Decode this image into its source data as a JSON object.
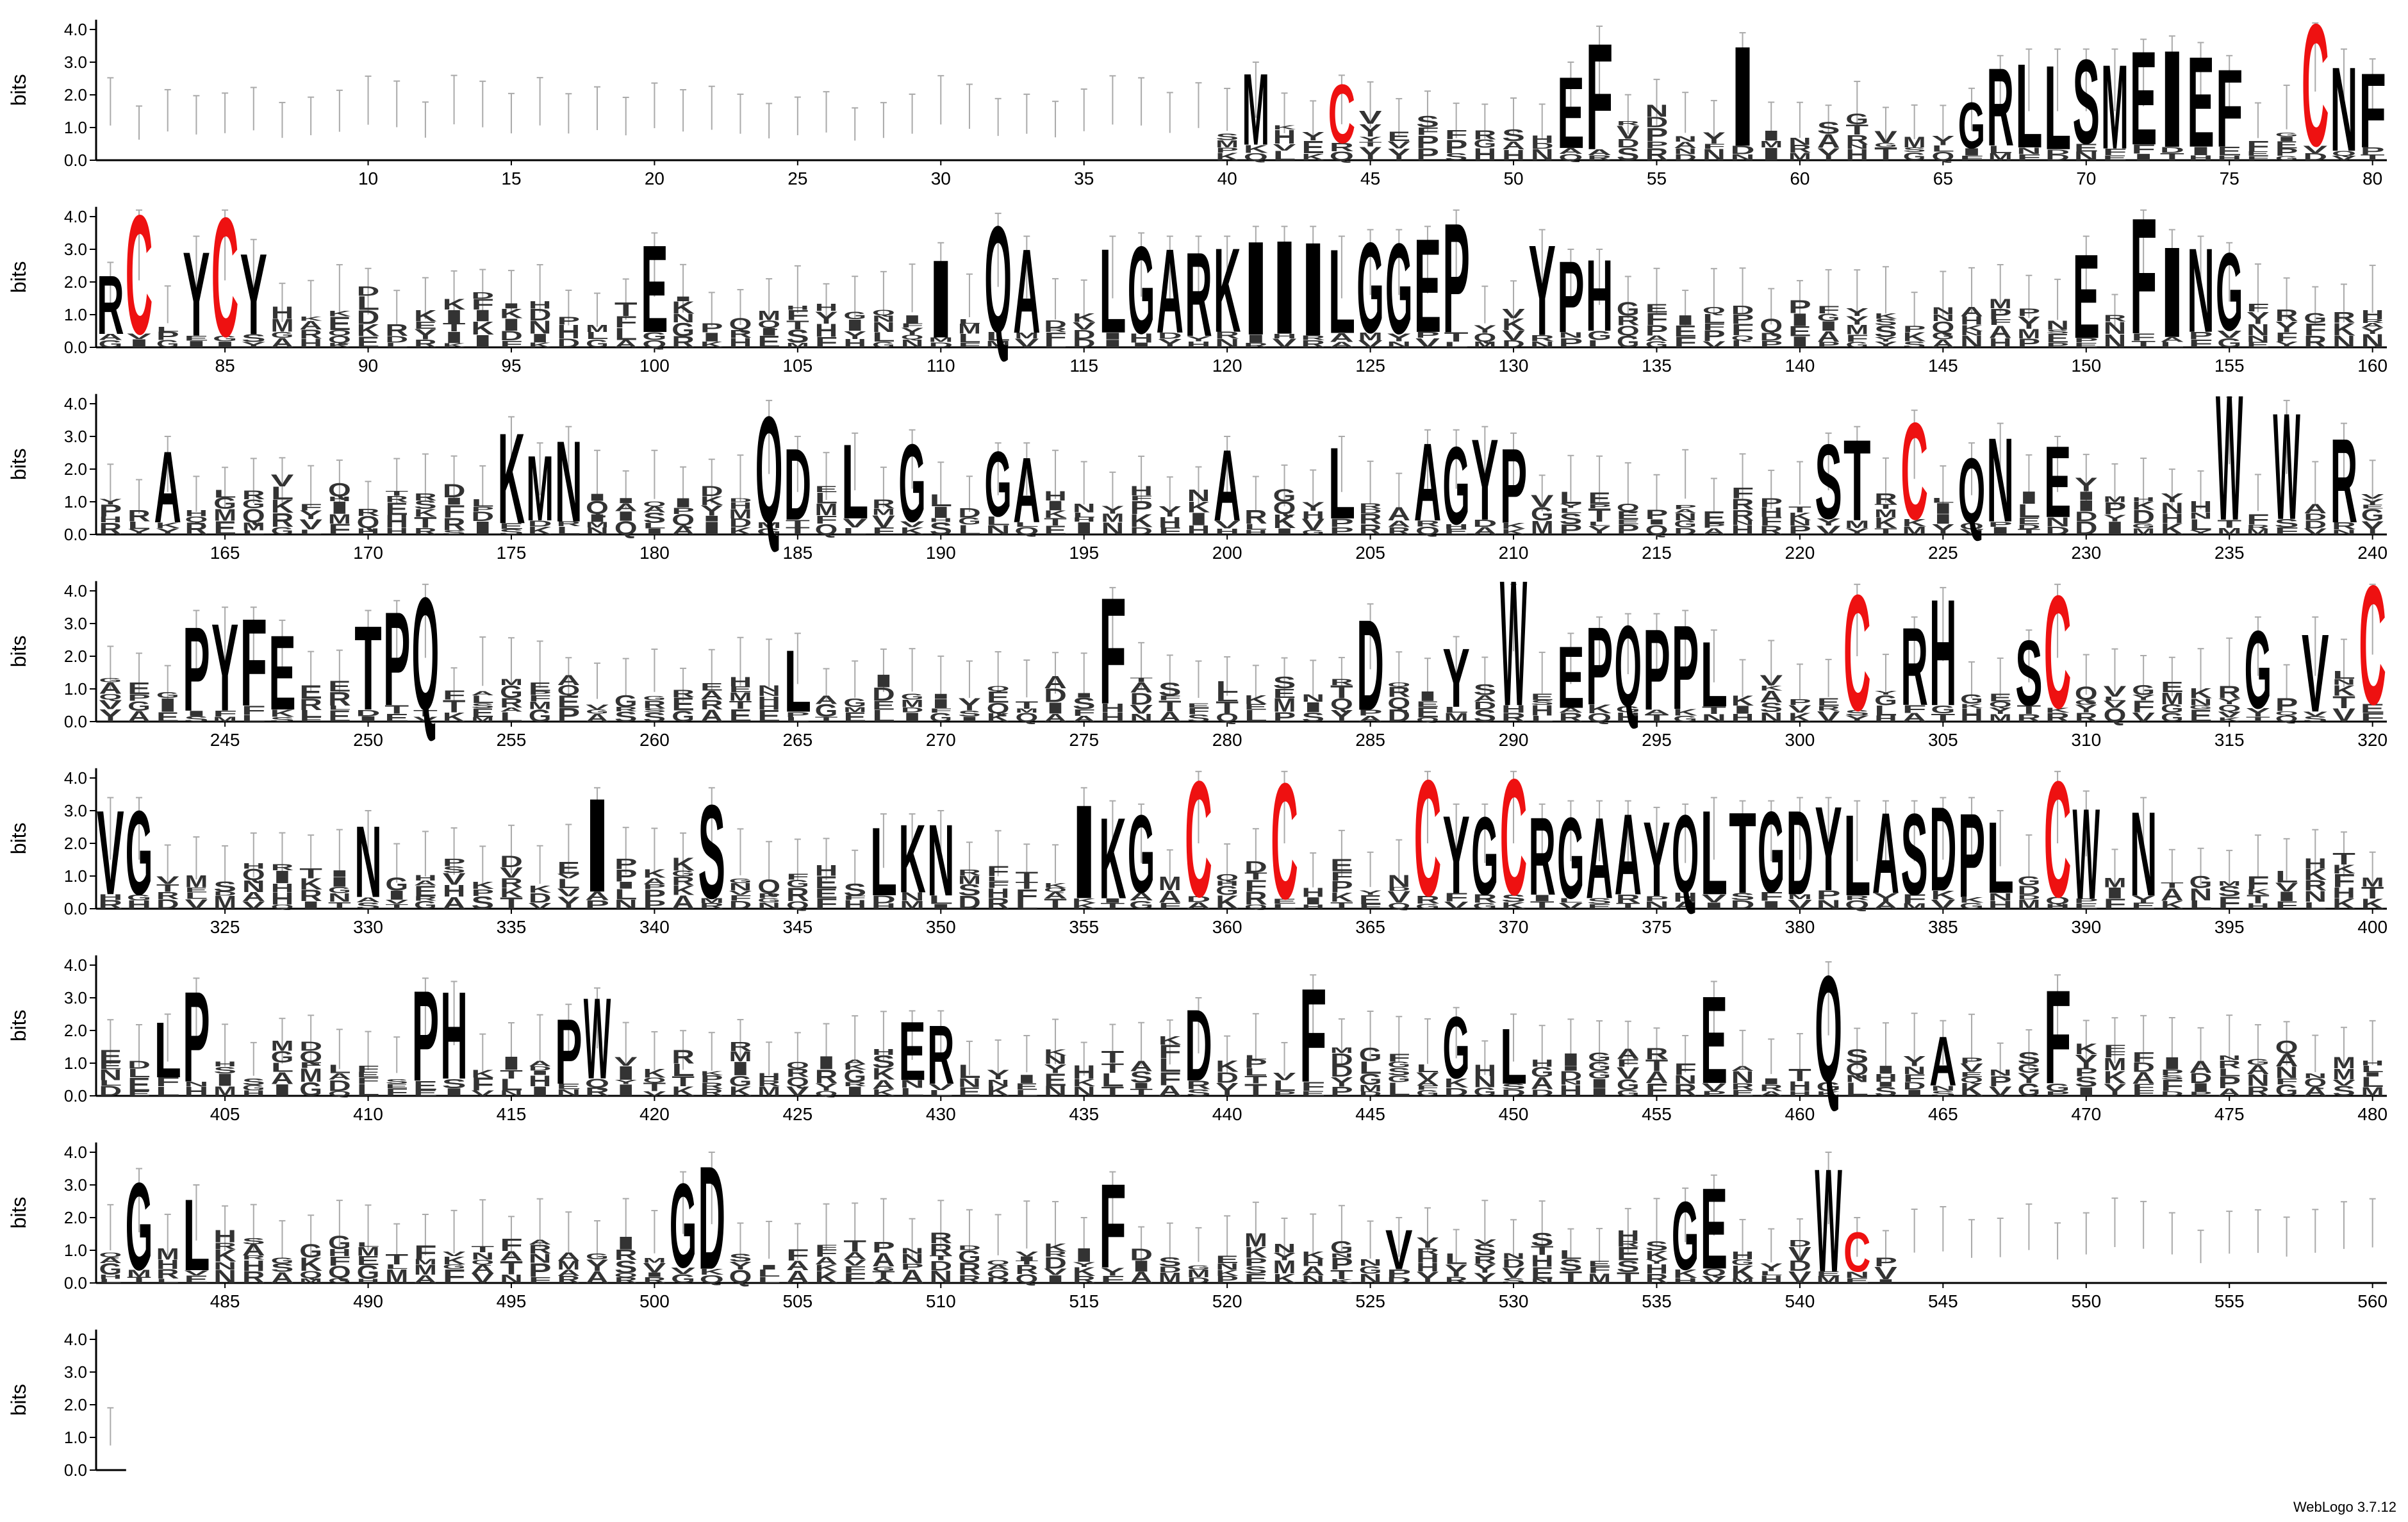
{
  "chart_data": {
    "type": "sequence-logo",
    "title": "",
    "ylabel": "bits",
    "ylim": [
      0,
      4.3
    ],
    "yticks": [
      "0.0",
      "1.0",
      "2.0",
      "3.0",
      "4.0"
    ],
    "positions_per_row": 80,
    "rows": [
      {
        "start": 1,
        "end": 80,
        "ticks": [
          10,
          15,
          20,
          25,
          30,
          35,
          40,
          45,
          50,
          55,
          60,
          65,
          70,
          75,
          80
        ],
        "tall": [
          {
            "pos": 41,
            "letter": "M",
            "height": 2.6
          },
          {
            "pos": 44,
            "letter": "C",
            "height": 2.2,
            "color": "#ee1111"
          },
          {
            "pos": 52,
            "letter": "E",
            "height": 2.6
          },
          {
            "pos": 53,
            "letter": "F",
            "height": 3.7
          },
          {
            "pos": 58,
            "letter": "I",
            "height": 3.5
          },
          {
            "pos": 66,
            "letter": "G",
            "height": 1.8
          },
          {
            "pos": 67,
            "letter": "R",
            "height": 2.8
          },
          {
            "pos": 68,
            "letter": "L",
            "height": 3.0
          },
          {
            "pos": 69,
            "letter": "L",
            "height": 3.0
          },
          {
            "pos": 70,
            "letter": "S",
            "height": 3.0
          },
          {
            "pos": 71,
            "letter": "M",
            "height": 3.0
          },
          {
            "pos": 72,
            "letter": "E",
            "height": 3.3
          },
          {
            "pos": 73,
            "letter": "I",
            "height": 3.4
          },
          {
            "pos": 74,
            "letter": "E",
            "height": 3.2
          },
          {
            "pos": 75,
            "letter": "F",
            "height": 2.8
          },
          {
            "pos": 78,
            "letter": "C",
            "height": 4.2,
            "color": "#ee1111"
          },
          {
            "pos": 79,
            "letter": "N",
            "height": 3.0
          },
          {
            "pos": 80,
            "letter": "F",
            "height": 2.7
          }
        ]
      },
      {
        "start": 81,
        "end": 160,
        "ticks": [
          85,
          90,
          95,
          100,
          105,
          110,
          115,
          120,
          125,
          130,
          135,
          140,
          145,
          150,
          155,
          160
        ],
        "tall": [
          {
            "pos": 81,
            "letter": "R",
            "height": 2.2
          },
          {
            "pos": 82,
            "letter": "C",
            "height": 4.1,
            "color": "#ee1111"
          },
          {
            "pos": 84,
            "letter": "Y",
            "height": 3.0
          },
          {
            "pos": 85,
            "letter": "C",
            "height": 4.1,
            "color": "#ee1111"
          },
          {
            "pos": 86,
            "letter": "Y",
            "height": 2.9
          },
          {
            "pos": 100,
            "letter": "E",
            "height": 3.1
          },
          {
            "pos": 110,
            "letter": "I",
            "height": 2.8
          },
          {
            "pos": 112,
            "letter": "Q",
            "height": 3.7
          },
          {
            "pos": 113,
            "letter": "A",
            "height": 3.0
          },
          {
            "pos": 116,
            "letter": "L",
            "height": 3.0
          },
          {
            "pos": 117,
            "letter": "G",
            "height": 3.1
          },
          {
            "pos": 118,
            "letter": "A",
            "height": 3.0
          },
          {
            "pos": 119,
            "letter": "R",
            "height": 3.0
          },
          {
            "pos": 120,
            "letter": "K",
            "height": 3.0
          },
          {
            "pos": 121,
            "letter": "I",
            "height": 3.3
          },
          {
            "pos": 122,
            "letter": "I",
            "height": 3.3
          },
          {
            "pos": 123,
            "letter": "I",
            "height": 3.3
          },
          {
            "pos": 124,
            "letter": "L",
            "height": 3.0
          },
          {
            "pos": 125,
            "letter": "G",
            "height": 3.2
          },
          {
            "pos": 126,
            "letter": "G",
            "height": 3.2
          },
          {
            "pos": 127,
            "letter": "E",
            "height": 3.3
          },
          {
            "pos": 128,
            "letter": "P",
            "height": 3.8
          },
          {
            "pos": 131,
            "letter": "Y",
            "height": 3.2
          },
          {
            "pos": 132,
            "letter": "P",
            "height": 2.6
          },
          {
            "pos": 133,
            "letter": "H",
            "height": 2.6
          },
          {
            "pos": 150,
            "letter": "E",
            "height": 3.0
          },
          {
            "pos": 152,
            "letter": "F",
            "height": 4.0
          },
          {
            "pos": 153,
            "letter": "I",
            "height": 3.2
          },
          {
            "pos": 154,
            "letter": "N",
            "height": 3.0
          },
          {
            "pos": 155,
            "letter": "G",
            "height": 2.8
          }
        ]
      },
      {
        "start": 161,
        "end": 240,
        "ticks": [
          165,
          170,
          175,
          180,
          185,
          190,
          195,
          200,
          205,
          210,
          215,
          220,
          225,
          230,
          235,
          240
        ],
        "tall": [
          {
            "pos": 163,
            "letter": "A",
            "height": 2.6
          },
          {
            "pos": 175,
            "letter": "K",
            "height": 3.2
          },
          {
            "pos": 176,
            "letter": "M",
            "height": 2.4
          },
          {
            "pos": 177,
            "letter": "N",
            "height": 2.9
          },
          {
            "pos": 184,
            "letter": "Q",
            "height": 3.7
          },
          {
            "pos": 185,
            "letter": "D",
            "height": 2.6
          },
          {
            "pos": 187,
            "letter": "L",
            "height": 2.7
          },
          {
            "pos": 189,
            "letter": "G",
            "height": 2.8
          },
          {
            "pos": 192,
            "letter": "G",
            "height": 2.4
          },
          {
            "pos": 193,
            "letter": "A",
            "height": 2.4
          },
          {
            "pos": 200,
            "letter": "A",
            "height": 2.6
          },
          {
            "pos": 204,
            "letter": "L",
            "height": 2.6
          },
          {
            "pos": 207,
            "letter": "A",
            "height": 2.8
          },
          {
            "pos": 208,
            "letter": "G",
            "height": 2.8
          },
          {
            "pos": 209,
            "letter": "Y",
            "height": 2.9
          },
          {
            "pos": 210,
            "letter": "P",
            "height": 2.7
          },
          {
            "pos": 221,
            "letter": "S",
            "height": 2.7
          },
          {
            "pos": 222,
            "letter": "T",
            "height": 2.9
          },
          {
            "pos": 224,
            "letter": "C",
            "height": 3.4,
            "color": "#ee1111"
          },
          {
            "pos": 226,
            "letter": "Q",
            "height": 2.4
          },
          {
            "pos": 227,
            "letter": "N",
            "height": 3.0
          },
          {
            "pos": 229,
            "letter": "E",
            "height": 2.6
          },
          {
            "pos": 235,
            "letter": "W",
            "height": 4.3
          },
          {
            "pos": 237,
            "letter": "W",
            "height": 3.7
          },
          {
            "pos": 239,
            "letter": "R",
            "height": 3.0
          }
        ]
      },
      {
        "start": 241,
        "end": 320,
        "ticks": [
          245,
          250,
          255,
          260,
          265,
          270,
          275,
          280,
          285,
          290,
          295,
          300,
          305,
          310,
          315,
          320
        ],
        "tall": [
          {
            "pos": 244,
            "letter": "P",
            "height": 3.0
          },
          {
            "pos": 245,
            "letter": "Y",
            "height": 3.1
          },
          {
            "pos": 246,
            "letter": "F",
            "height": 3.1
          },
          {
            "pos": 247,
            "letter": "E",
            "height": 2.7
          },
          {
            "pos": 250,
            "letter": "T",
            "height": 3.0
          },
          {
            "pos": 251,
            "letter": "P",
            "height": 3.3
          },
          {
            "pos": 252,
            "letter": "Q",
            "height": 3.9
          },
          {
            "pos": 265,
            "letter": "L",
            "height": 2.3
          },
          {
            "pos": 276,
            "letter": "F",
            "height": 3.7
          },
          {
            "pos": 285,
            "letter": "D",
            "height": 3.2
          },
          {
            "pos": 288,
            "letter": "Y",
            "height": 2.2
          },
          {
            "pos": 290,
            "letter": "W",
            "height": 4.3
          },
          {
            "pos": 292,
            "letter": "E",
            "height": 2.3
          },
          {
            "pos": 293,
            "letter": "P",
            "height": 2.8
          },
          {
            "pos": 294,
            "letter": "Q",
            "height": 2.9
          },
          {
            "pos": 295,
            "letter": "P",
            "height": 2.9
          },
          {
            "pos": 296,
            "letter": "P",
            "height": 3.0
          },
          {
            "pos": 297,
            "letter": "L",
            "height": 2.4
          },
          {
            "pos": 302,
            "letter": "C",
            "height": 4.0,
            "color": "#ee1111"
          },
          {
            "pos": 304,
            "letter": "R",
            "height": 2.8
          },
          {
            "pos": 305,
            "letter": "H",
            "height": 3.7
          },
          {
            "pos": 308,
            "letter": "S",
            "height": 2.4
          },
          {
            "pos": 309,
            "letter": "C",
            "height": 3.9,
            "color": "#ee1111"
          },
          {
            "pos": 316,
            "letter": "G",
            "height": 2.8
          },
          {
            "pos": 318,
            "letter": "V",
            "height": 2.8
          },
          {
            "pos": 320,
            "letter": "C",
            "height": 4.1,
            "color": "#ee1111"
          }
        ]
      },
      {
        "start": 321,
        "end": 400,
        "ticks": [
          325,
          330,
          335,
          340,
          345,
          350,
          355,
          360,
          365,
          370,
          375,
          380,
          385,
          390,
          395,
          400
        ],
        "tall": [
          {
            "pos": 321,
            "letter": "V",
            "height": 3.0
          },
          {
            "pos": 322,
            "letter": "G",
            "height": 3.0
          },
          {
            "pos": 330,
            "letter": "N",
            "height": 2.6
          },
          {
            "pos": 338,
            "letter": "I",
            "height": 3.3
          },
          {
            "pos": 342,
            "letter": "S",
            "height": 3.3
          },
          {
            "pos": 348,
            "letter": "L",
            "height": 2.5
          },
          {
            "pos": 349,
            "letter": "K",
            "height": 2.5
          },
          {
            "pos": 350,
            "letter": "N",
            "height": 2.6
          },
          {
            "pos": 355,
            "letter": "I",
            "height": 3.3
          },
          {
            "pos": 356,
            "letter": "K",
            "height": 2.9
          },
          {
            "pos": 357,
            "letter": "G",
            "height": 2.8
          },
          {
            "pos": 359,
            "letter": "C",
            "height": 4.0,
            "color": "#ee1111"
          },
          {
            "pos": 362,
            "letter": "C",
            "height": 4.0,
            "color": "#ee1111"
          },
          {
            "pos": 367,
            "letter": "C",
            "height": 4.0,
            "color": "#ee1111"
          },
          {
            "pos": 368,
            "letter": "Y",
            "height": 2.8
          },
          {
            "pos": 369,
            "letter": "G",
            "height": 2.8
          },
          {
            "pos": 370,
            "letter": "C",
            "height": 4.0,
            "color": "#ee1111"
          },
          {
            "pos": 371,
            "letter": "R",
            "height": 2.8
          },
          {
            "pos": 372,
            "letter": "G",
            "height": 2.9
          },
          {
            "pos": 373,
            "letter": "A",
            "height": 2.9
          },
          {
            "pos": 374,
            "letter": "A",
            "height": 2.9
          },
          {
            "pos": 375,
            "letter": "Y",
            "height": 2.7
          },
          {
            "pos": 376,
            "letter": "Q",
            "height": 2.8
          },
          {
            "pos": 377,
            "letter": "L",
            "height": 3.0
          },
          {
            "pos": 378,
            "letter": "T",
            "height": 2.9
          },
          {
            "pos": 379,
            "letter": "G",
            "height": 2.9
          },
          {
            "pos": 380,
            "letter": "D",
            "height": 3.0
          },
          {
            "pos": 381,
            "letter": "Y",
            "height": 3.0
          },
          {
            "pos": 382,
            "letter": "L",
            "height": 2.9
          },
          {
            "pos": 383,
            "letter": "A",
            "height": 2.9
          },
          {
            "pos": 384,
            "letter": "S",
            "height": 2.9
          },
          {
            "pos": 385,
            "letter": "D",
            "height": 3.0
          },
          {
            "pos": 386,
            "letter": "P",
            "height": 3.0
          },
          {
            "pos": 387,
            "letter": "L",
            "height": 2.6
          },
          {
            "pos": 389,
            "letter": "C",
            "height": 4.0,
            "color": "#ee1111"
          },
          {
            "pos": 390,
            "letter": "W",
            "height": 3.2
          },
          {
            "pos": 392,
            "letter": "N",
            "height": 3.0
          }
        ]
      },
      {
        "start": 401,
        "end": 480,
        "ticks": [
          405,
          410,
          415,
          420,
          425,
          430,
          435,
          440,
          445,
          450,
          455,
          460,
          465,
          470,
          475,
          480
        ],
        "tall": [
          {
            "pos": 403,
            "letter": "L",
            "height": 2.1
          },
          {
            "pos": 404,
            "letter": "P",
            "height": 3.2
          },
          {
            "pos": 412,
            "letter": "P",
            "height": 3.2
          },
          {
            "pos": 413,
            "letter": "H",
            "height": 3.1
          },
          {
            "pos": 417,
            "letter": "P",
            "height": 2.4
          },
          {
            "pos": 418,
            "letter": "W",
            "height": 2.9
          },
          {
            "pos": 429,
            "letter": "E",
            "height": 2.2
          },
          {
            "pos": 430,
            "letter": "R",
            "height": 2.2
          },
          {
            "pos": 439,
            "letter": "D",
            "height": 2.6
          },
          {
            "pos": 443,
            "letter": "F",
            "height": 3.3
          },
          {
            "pos": 448,
            "letter": "G",
            "height": 2.3
          },
          {
            "pos": 450,
            "letter": "L",
            "height": 2.1
          },
          {
            "pos": 457,
            "letter": "E",
            "height": 3.1
          },
          {
            "pos": 461,
            "letter": "Q",
            "height": 3.7
          },
          {
            "pos": 465,
            "letter": "A",
            "height": 1.9
          },
          {
            "pos": 469,
            "letter": "F",
            "height": 3.3
          }
        ]
      },
      {
        "start": 481,
        "end": 560,
        "ticks": [
          485,
          490,
          495,
          500,
          505,
          510,
          515,
          520,
          525,
          530,
          535,
          540,
          545,
          550,
          555,
          560
        ],
        "tall": [
          {
            "pos": 482,
            "letter": "G",
            "height": 3.1
          },
          {
            "pos": 484,
            "letter": "L",
            "height": 2.6
          },
          {
            "pos": 501,
            "letter": "G",
            "height": 3.0
          },
          {
            "pos": 502,
            "letter": "D",
            "height": 3.6
          },
          {
            "pos": 516,
            "letter": "F",
            "height": 3.0
          },
          {
            "pos": 526,
            "letter": "V",
            "height": 1.6
          },
          {
            "pos": 536,
            "letter": "G",
            "height": 2.5
          },
          {
            "pos": 537,
            "letter": "E",
            "height": 2.9
          },
          {
            "pos": 541,
            "letter": "W",
            "height": 3.6
          },
          {
            "pos": 542,
            "letter": "C",
            "height": 1.6,
            "color": "#ee1111"
          }
        ]
      },
      {
        "start": 561,
        "end": 561,
        "ticks": [],
        "tall": []
      }
    ]
  },
  "footer": {
    "credit": "WebLogo 3.7.12"
  }
}
